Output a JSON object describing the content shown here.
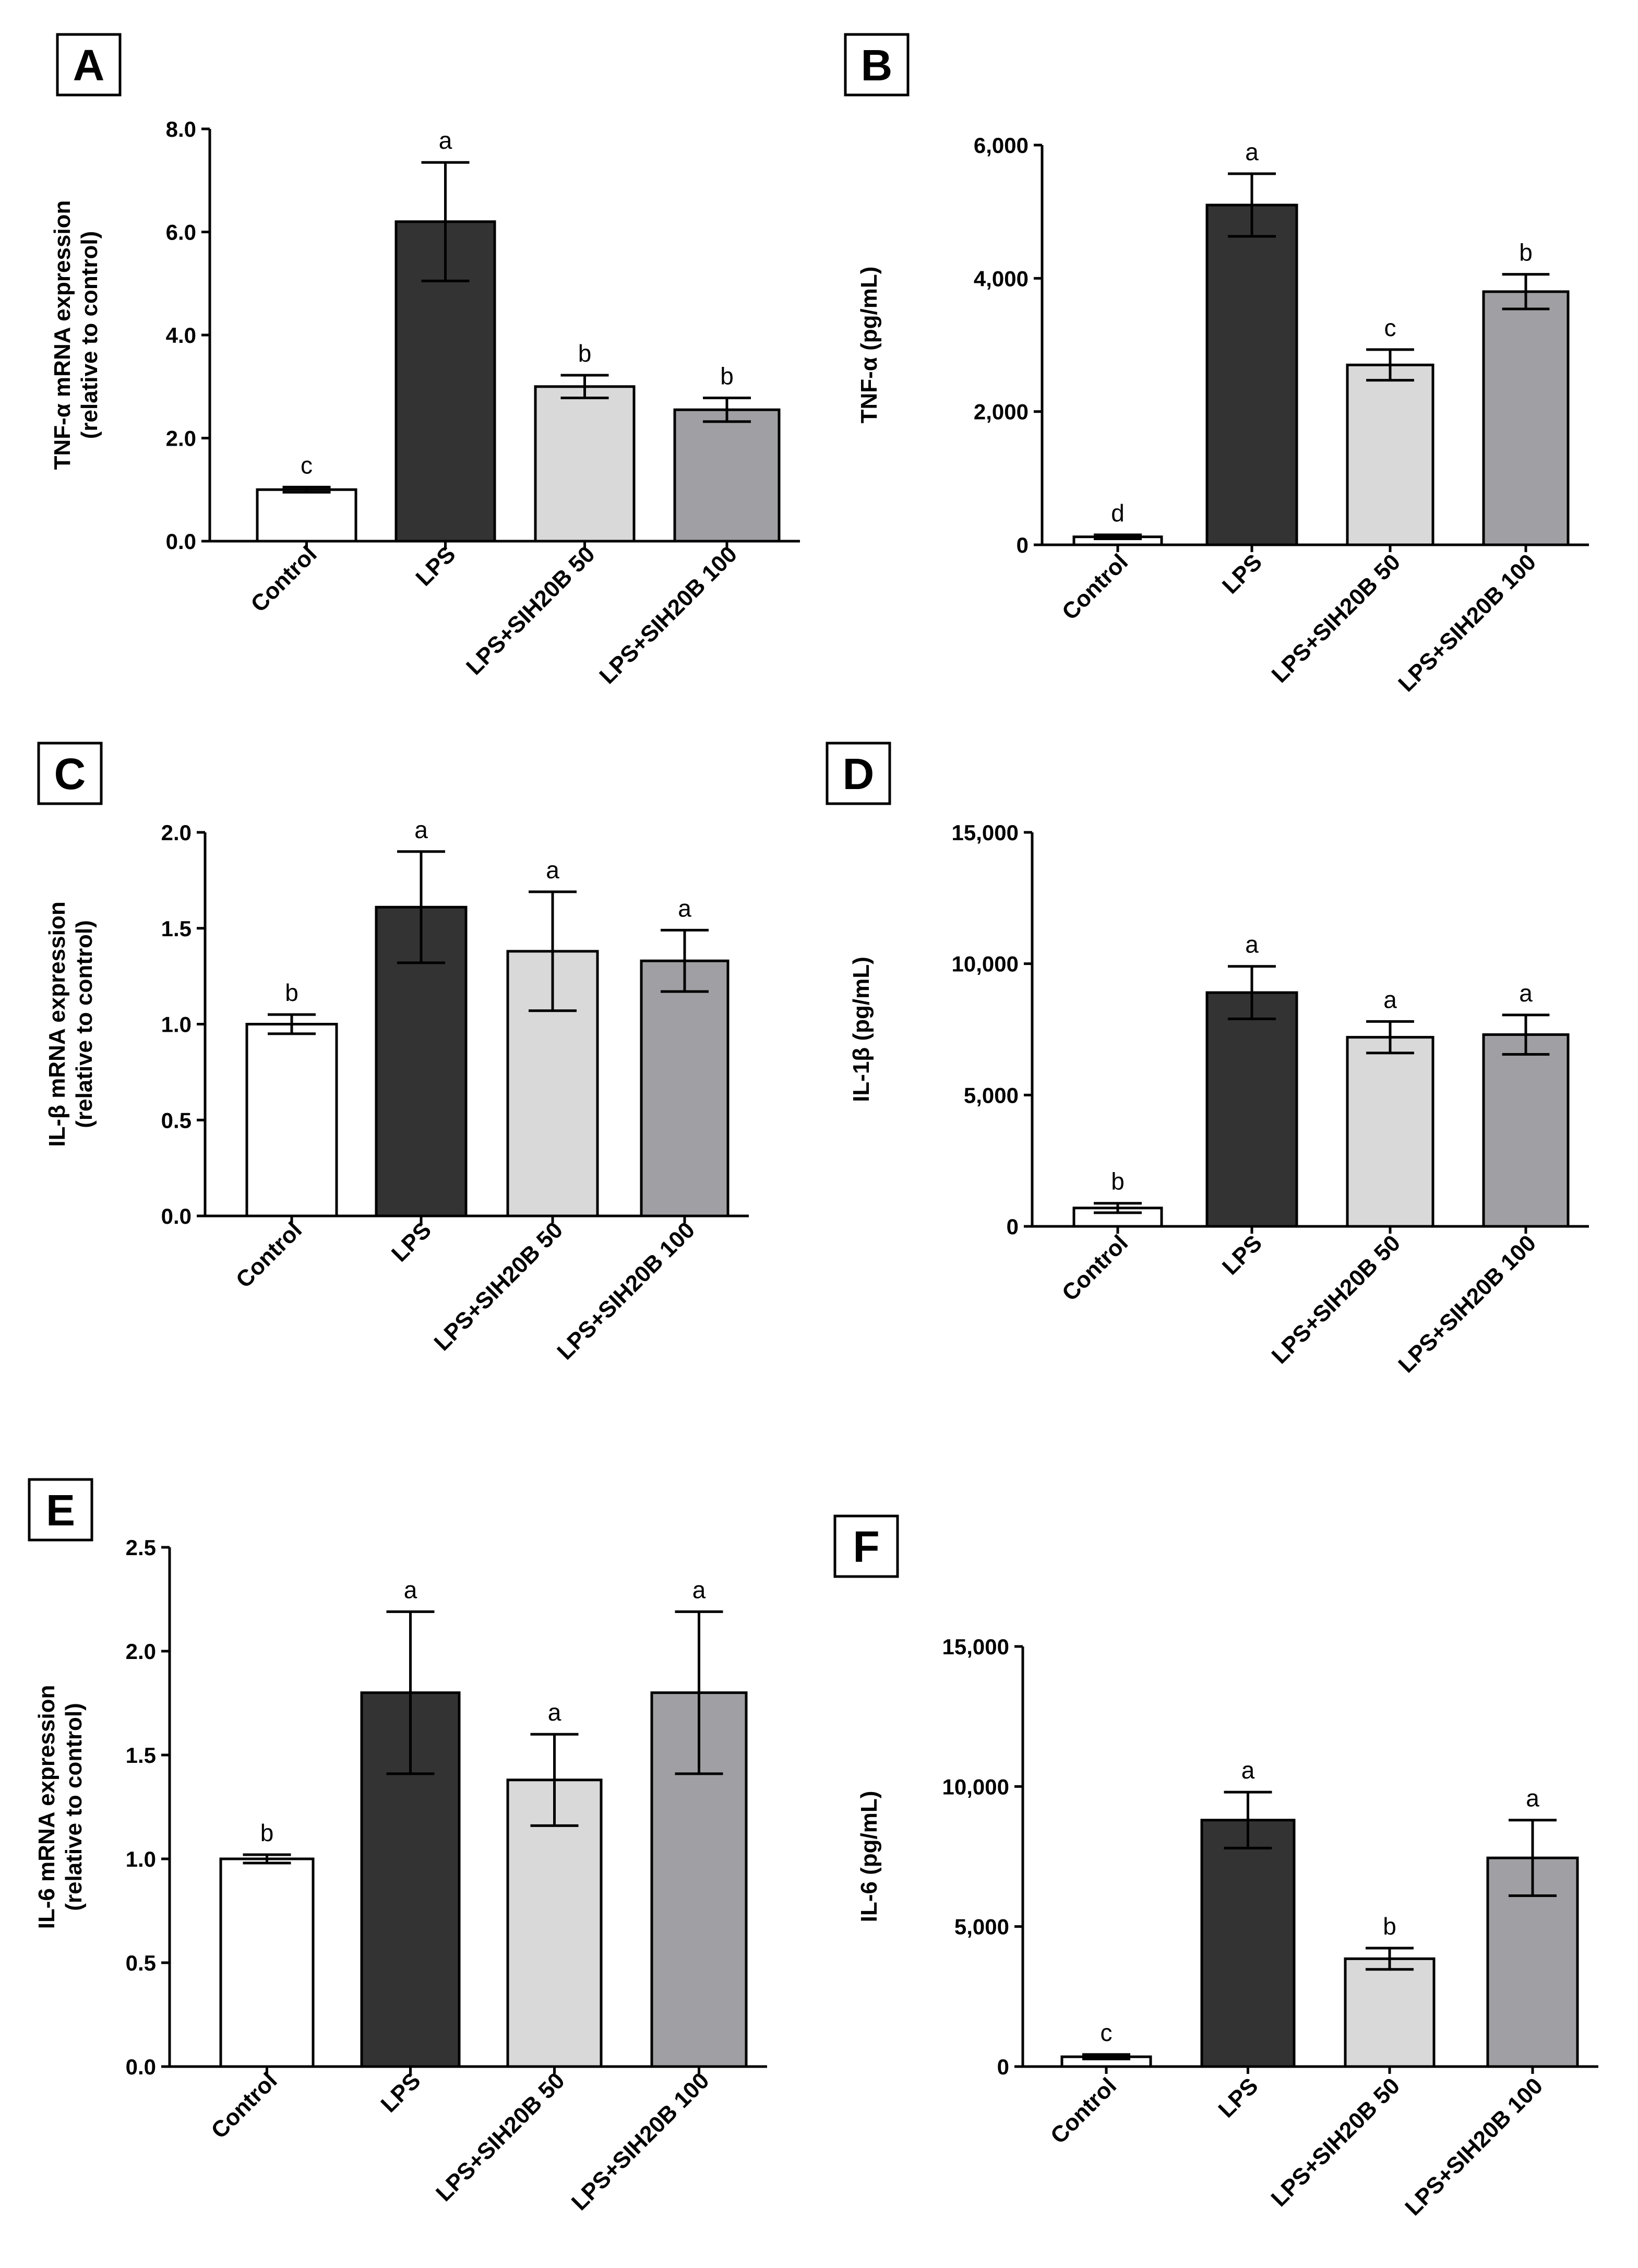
{
  "colors": {
    "control": "#ffffff",
    "lps": "#333333",
    "sih50": "#d9d9d9",
    "sih100": "#a0a0a4",
    "stroke": "#000000"
  },
  "chart_data": [
    {
      "panel": "A",
      "type": "bar",
      "ylabel": [
        "TNF-α mRNA expression",
        "(relative to control)"
      ],
      "categories": [
        "Control",
        "LPS",
        "LPS+SIH20B 50",
        "LPS+SIH20B 100"
      ],
      "values": [
        1.0,
        6.2,
        3.0,
        2.55
      ],
      "errors": [
        0.05,
        1.15,
        0.22,
        0.23
      ],
      "letters": [
        "c",
        "a",
        "b",
        "b"
      ],
      "ylim": [
        0,
        8
      ],
      "ticks": [
        0,
        2,
        4,
        6,
        8
      ],
      "tick_labels": [
        "0.0",
        "2.0",
        "4.0",
        "6.0",
        "8.0"
      ]
    },
    {
      "panel": "B",
      "type": "bar",
      "ylabel": [
        "TNF-α (pg/mL)"
      ],
      "categories": [
        "Control",
        "LPS",
        "LPS+SIH20B 50",
        "LPS+SIH20B 100"
      ],
      "values": [
        120,
        5100,
        2700,
        3800
      ],
      "errors": [
        30,
        470,
        230,
        260
      ],
      "letters": [
        "d",
        "a",
        "c",
        "b"
      ],
      "ylim": [
        0,
        6000
      ],
      "ticks": [
        0,
        2000,
        4000,
        6000
      ],
      "tick_labels": [
        "0",
        "2,000",
        "4,000",
        "6,000"
      ]
    },
    {
      "panel": "C",
      "type": "bar",
      "ylabel": [
        "IL-β mRNA expression",
        "(relative to control)"
      ],
      "categories": [
        "Control",
        "LPS",
        "LPS+SIH20B 50",
        "LPS+SIH20B 100"
      ],
      "values": [
        1.0,
        1.61,
        1.38,
        1.33
      ],
      "errors": [
        0.05,
        0.29,
        0.31,
        0.16
      ],
      "letters": [
        "b",
        "a",
        "a",
        "a"
      ],
      "ylim": [
        0,
        2
      ],
      "ticks": [
        0,
        0.5,
        1.0,
        1.5,
        2.0
      ],
      "tick_labels": [
        "0.0",
        "0.5",
        "1.0",
        "1.5",
        "2.0"
      ]
    },
    {
      "panel": "D",
      "type": "bar",
      "ylabel": [
        "IL-1β (pg/mL)"
      ],
      "categories": [
        "Control",
        "LPS",
        "LPS+SIH20B 50",
        "LPS+SIH20B 100"
      ],
      "values": [
        700,
        8900,
        7200,
        7300
      ],
      "errors": [
        180,
        1000,
        600,
        750
      ],
      "letters": [
        "b",
        "a",
        "a",
        "a"
      ],
      "ylim": [
        0,
        15000
      ],
      "ticks": [
        0,
        5000,
        10000,
        15000
      ],
      "tick_labels": [
        "0",
        "5,000",
        "10,000",
        "15,000"
      ]
    },
    {
      "panel": "E",
      "type": "bar",
      "ylabel": [
        "IL-6 mRNA expression",
        "(relative to control)"
      ],
      "categories": [
        "Control",
        "LPS",
        "LPS+SIH20B 50",
        "LPS+SIH20B 100"
      ],
      "values": [
        1.0,
        1.8,
        1.38,
        1.8
      ],
      "errors": [
        0.02,
        0.39,
        0.22,
        0.39
      ],
      "letters": [
        "b",
        "a",
        "a",
        "a"
      ],
      "ylim": [
        0,
        2.5
      ],
      "ticks": [
        0,
        0.5,
        1.0,
        1.5,
        2.0,
        2.5
      ],
      "tick_labels": [
        "0.0",
        "0.5",
        "1.0",
        "1.5",
        "2.0",
        "2.5"
      ]
    },
    {
      "panel": "F",
      "type": "bar",
      "ylabel": [
        "IL-6 (pg/mL)"
      ],
      "categories": [
        "Control",
        "LPS",
        "LPS+SIH20B 50",
        "LPS+SIH20B 100"
      ],
      "values": [
        350,
        8800,
        3850,
        7450
      ],
      "errors": [
        80,
        1000,
        380,
        1350
      ],
      "letters": [
        "c",
        "a",
        "b",
        "a"
      ],
      "ylim": [
        0,
        15000
      ],
      "ticks": [
        0,
        5000,
        10000,
        15000
      ],
      "tick_labels": [
        "0",
        "5,000",
        "10,000",
        "15,000"
      ]
    }
  ]
}
